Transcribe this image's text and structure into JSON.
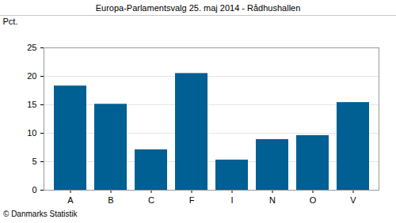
{
  "chart_data": {
    "type": "bar",
    "title": "Europa-Parlamentsvalg 25. maj 2014 - Rådhushallen",
    "ylabel": "Pct.",
    "caption": "© Danmarks Statistik",
    "categories": [
      "A",
      "B",
      "C",
      "F",
      "I",
      "N",
      "O",
      "V"
    ],
    "values": [
      18.3,
      15.1,
      7.1,
      20.5,
      5.3,
      8.9,
      9.6,
      15.4
    ],
    "color": "#005f93",
    "ylim": [
      0,
      25
    ],
    "yticks": [
      0,
      5,
      10,
      15,
      20,
      25
    ],
    "grid": true
  }
}
